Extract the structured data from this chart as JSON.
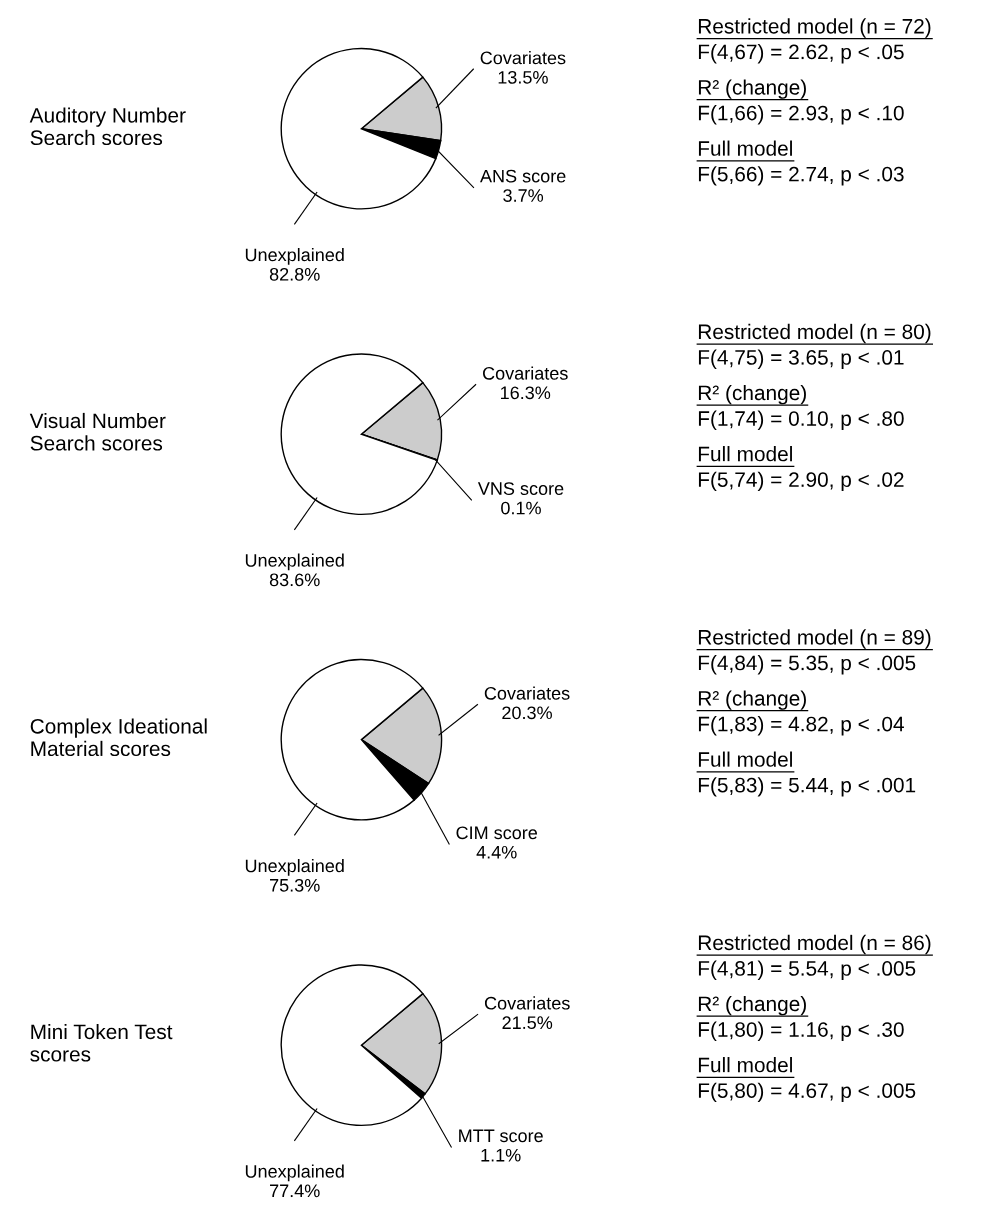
{
  "chart_data": [
    {
      "type": "pie",
      "title": "Auditory Number\nSearch scores",
      "categories": [
        "Covariates",
        "ANS score",
        "Unexplained"
      ],
      "values": [
        13.5,
        3.7,
        82.8
      ],
      "value_labels": [
        "13.5%",
        "3.7%",
        "82.8%"
      ],
      "colors": [
        "#cccccc",
        "#000000",
        "#ffffff"
      ],
      "annotations": [
        "Restricted model (n = 72)",
        "F(4,67) = 2.62, p < .05",
        "R² (change)",
        "F(1,66) = 2.93, p < .10",
        "Full model",
        "F(5,66) = 2.74, p < .03"
      ]
    },
    {
      "type": "pie",
      "title": "Visual Number\nSearch scores",
      "categories": [
        "Covariates",
        "VNS score",
        "Unexplained"
      ],
      "values": [
        16.3,
        0.1,
        83.6
      ],
      "value_labels": [
        "16.3%",
        "0.1%",
        "83.6%"
      ],
      "colors": [
        "#cccccc",
        "#000000",
        "#ffffff"
      ],
      "annotations": [
        "Restricted model (n = 80)",
        "F(4,75) = 3.65, p < .01",
        "R² (change)",
        "F(1,74) = 0.10, p < .80",
        "Full model",
        "F(5,74) = 2.90, p < .02"
      ]
    },
    {
      "type": "pie",
      "title": "Complex Ideational\nMaterial scores",
      "categories": [
        "Covariates",
        "CIM score",
        "Unexplained"
      ],
      "values": [
        20.3,
        4.4,
        75.3
      ],
      "value_labels": [
        "20.3%",
        "4.4%",
        "75.3%"
      ],
      "colors": [
        "#cccccc",
        "#000000",
        "#ffffff"
      ],
      "annotations": [
        "Restricted model (n = 89)",
        "F(4,84) = 5.35, p < .005",
        "R² (change)",
        "F(1,83) = 4.82, p < .04",
        "Full model",
        "F(5,83) = 5.44, p < .001"
      ]
    },
    {
      "type": "pie",
      "title": "Mini Token Test\nscores",
      "categories": [
        "Covariates",
        "MTT score",
        "Unexplained"
      ],
      "values": [
        21.5,
        1.1,
        77.4
      ],
      "value_labels": [
        "21.5%",
        "1.1%",
        "77.4%"
      ],
      "colors": [
        "#cccccc",
        "#000000",
        "#ffffff"
      ],
      "annotations": [
        "Restricted model (n = 86)",
        "F(4,81) = 5.54, p < .005",
        "R² (change)",
        "F(1,80) = 1.16, p < .30",
        "Full model",
        "F(5,80) = 4.67, p < .005"
      ]
    }
  ]
}
